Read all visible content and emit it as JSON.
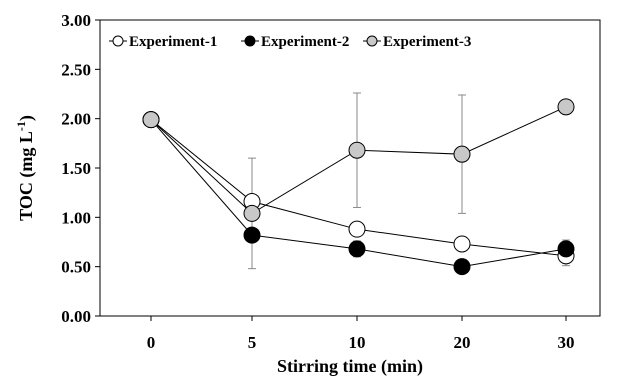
{
  "chart_data": {
    "type": "line",
    "categories": [
      "0",
      "5",
      "10",
      "20",
      "30"
    ],
    "xlabel": "Stirring time (min)",
    "ylabel_main": "TOC (mg L",
    "ylabel_sup": "-1",
    "ylabel_close": ")",
    "ylim": [
      0,
      3
    ],
    "yticks": [
      "0.00",
      "0.50",
      "1.00",
      "1.50",
      "2.00",
      "2.50",
      "3.00"
    ],
    "grid": false,
    "legend_position": "top-left",
    "series": [
      {
        "name": "Experiment-1",
        "fill": "#ffffff",
        "values": [
          1.99,
          1.16,
          0.88,
          0.73,
          0.61
        ],
        "err": [
          0.05,
          0.06,
          0.05,
          0.04,
          0.1
        ]
      },
      {
        "name": "Experiment-2",
        "fill": "#000000",
        "values": [
          1.99,
          0.82,
          0.68,
          0.5,
          0.68
        ],
        "err": [
          0.04,
          0.04,
          0.08,
          0.04,
          0.09
        ]
      },
      {
        "name": "Experiment-3",
        "fill": "#c8c8c8",
        "values": [
          1.99,
          1.04,
          1.68,
          1.64,
          2.12
        ],
        "err": [
          0.05,
          0.56,
          0.58,
          0.6,
          0.03
        ]
      }
    ]
  }
}
